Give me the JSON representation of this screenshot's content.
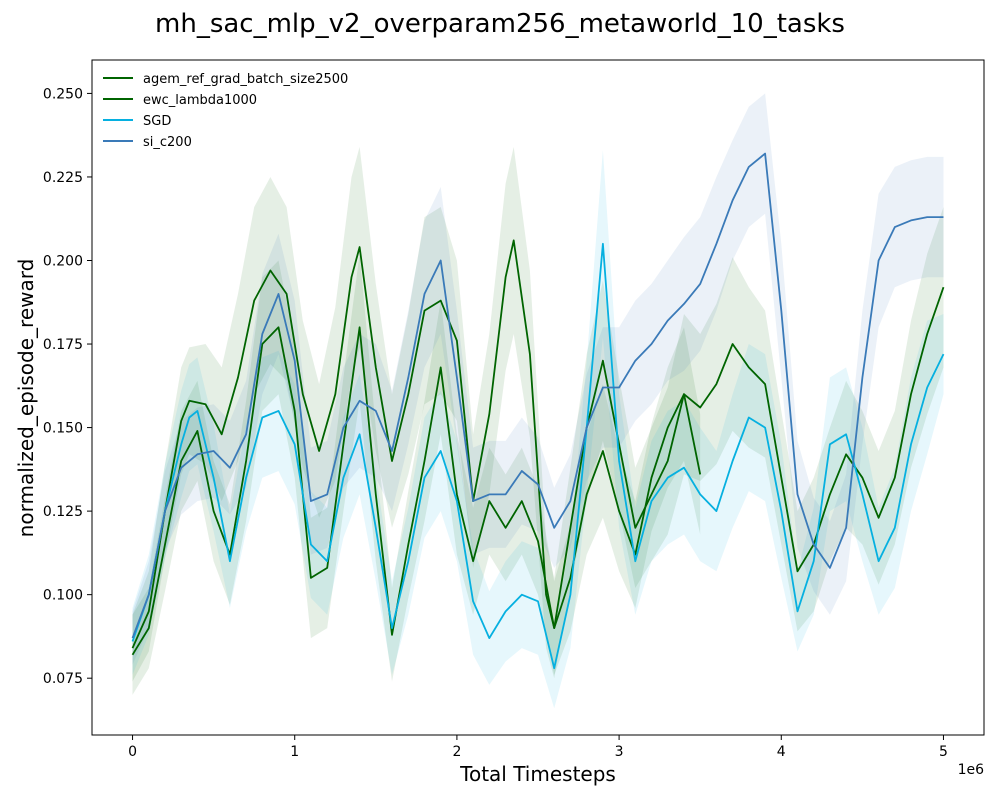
{
  "chart_data": {
    "type": "line",
    "title": "mh_sac_mlp_v2_overparam256_metaworld_10_tasks",
    "xlabel": "Total Timesteps",
    "ylabel": "normalized_episode_reward",
    "x_offset_label": "1e6",
    "xlim": [
      -0.25,
      5.25
    ],
    "ylim": [
      0.058,
      0.26
    ],
    "xticks": [
      0,
      1,
      2,
      3,
      4,
      5
    ],
    "xtick_labels": [
      "0",
      "1",
      "2",
      "3",
      "4",
      "5"
    ],
    "yticks": [
      0.075,
      0.1,
      0.125,
      0.15,
      0.175,
      0.2,
      0.225,
      0.25
    ],
    "ytick_labels": [
      "0.075",
      "0.100",
      "0.125",
      "0.150",
      "0.175",
      "0.200",
      "0.225",
      "0.250"
    ],
    "grid": false,
    "legend_position": "upper-left",
    "series": [
      {
        "name": "agem_ref_grad_batch_size2500",
        "color": "#006400",
        "x": [
          0,
          0.1,
          0.2,
          0.3,
          0.4,
          0.5,
          0.6,
          0.7,
          0.8,
          0.9,
          1.0,
          1.1,
          1.2,
          1.3,
          1.4,
          1.5,
          1.6,
          1.7,
          1.8,
          1.9,
          2.0,
          2.1,
          2.2,
          2.3,
          2.4,
          2.5,
          2.6,
          2.7,
          2.8,
          2.9,
          3.0,
          3.1,
          3.2,
          3.3,
          3.4,
          3.5
        ],
        "y": [
          0.082,
          0.09,
          0.115,
          0.14,
          0.149,
          0.125,
          0.112,
          0.14,
          0.175,
          0.18,
          0.155,
          0.105,
          0.108,
          0.145,
          0.18,
          0.13,
          0.088,
          0.115,
          0.14,
          0.168,
          0.13,
          0.11,
          0.128,
          0.12,
          0.128,
          0.116,
          0.09,
          0.105,
          0.13,
          0.143,
          0.125,
          0.112,
          0.135,
          0.15,
          0.16,
          0.136
        ],
        "band": [
          0.012,
          0.012,
          0.014,
          0.015,
          0.015,
          0.015,
          0.015,
          0.018,
          0.02,
          0.02,
          0.02,
          0.018,
          0.018,
          0.02,
          0.022,
          0.02,
          0.014,
          0.016,
          0.018,
          0.02,
          0.018,
          0.016,
          0.016,
          0.016,
          0.016,
          0.016,
          0.014,
          0.016,
          0.018,
          0.02,
          0.018,
          0.016,
          0.016,
          0.018,
          0.02,
          0.018
        ]
      },
      {
        "name": "ewc_lambda1000",
        "color": "#006400",
        "x": [
          0,
          0.1,
          0.2,
          0.3,
          0.35,
          0.45,
          0.55,
          0.65,
          0.75,
          0.85,
          0.95,
          1.05,
          1.15,
          1.25,
          1.35,
          1.4,
          1.5,
          1.6,
          1.7,
          1.8,
          1.9,
          2.0,
          2.1,
          2.2,
          2.3,
          2.35,
          2.45,
          2.55,
          2.6,
          2.7,
          2.8,
          2.9,
          3.0,
          3.1,
          3.2,
          3.3,
          3.4,
          3.5,
          3.6,
          3.7,
          3.8,
          3.9,
          4.0,
          4.1,
          4.2,
          4.3,
          4.4,
          4.5,
          4.6,
          4.7,
          4.8,
          4.9,
          5.0
        ],
        "y": [
          0.084,
          0.095,
          0.125,
          0.152,
          0.158,
          0.157,
          0.148,
          0.165,
          0.188,
          0.197,
          0.19,
          0.16,
          0.143,
          0.16,
          0.195,
          0.204,
          0.168,
          0.14,
          0.16,
          0.185,
          0.188,
          0.176,
          0.128,
          0.154,
          0.195,
          0.206,
          0.172,
          0.1,
          0.09,
          0.12,
          0.15,
          0.17,
          0.145,
          0.12,
          0.13,
          0.14,
          0.16,
          0.156,
          0.163,
          0.175,
          0.168,
          0.163,
          0.135,
          0.107,
          0.115,
          0.13,
          0.142,
          0.135,
          0.123,
          0.135,
          0.16,
          0.178,
          0.192
        ],
        "band": [
          0.01,
          0.012,
          0.014,
          0.016,
          0.016,
          0.018,
          0.02,
          0.025,
          0.028,
          0.028,
          0.026,
          0.022,
          0.02,
          0.026,
          0.03,
          0.03,
          0.025,
          0.02,
          0.024,
          0.028,
          0.028,
          0.024,
          0.02,
          0.024,
          0.028,
          0.028,
          0.025,
          0.016,
          0.015,
          0.018,
          0.022,
          0.024,
          0.02,
          0.018,
          0.02,
          0.022,
          0.024,
          0.022,
          0.024,
          0.026,
          0.024,
          0.022,
          0.02,
          0.018,
          0.02,
          0.02,
          0.022,
          0.02,
          0.02,
          0.02,
          0.022,
          0.024,
          0.024
        ]
      },
      {
        "name": "SGD",
        "color": "#06b0e0",
        "x": [
          0,
          0.1,
          0.2,
          0.3,
          0.35,
          0.4,
          0.5,
          0.6,
          0.7,
          0.8,
          0.9,
          1.0,
          1.1,
          1.2,
          1.3,
          1.4,
          1.5,
          1.6,
          1.7,
          1.8,
          1.9,
          2.0,
          2.1,
          2.2,
          2.3,
          2.4,
          2.5,
          2.6,
          2.7,
          2.8,
          2.9,
          3.0,
          3.1,
          3.2,
          3.3,
          3.4,
          3.5,
          3.6,
          3.7,
          3.8,
          3.9,
          4.0,
          4.1,
          4.2,
          4.3,
          4.4,
          4.5,
          4.6,
          4.7,
          4.8,
          4.9,
          5.0
        ],
        "y": [
          0.086,
          0.1,
          0.125,
          0.145,
          0.153,
          0.155,
          0.135,
          0.11,
          0.135,
          0.153,
          0.155,
          0.145,
          0.115,
          0.11,
          0.135,
          0.148,
          0.12,
          0.09,
          0.11,
          0.135,
          0.143,
          0.128,
          0.098,
          0.087,
          0.095,
          0.1,
          0.098,
          0.078,
          0.1,
          0.15,
          0.205,
          0.14,
          0.11,
          0.128,
          0.135,
          0.138,
          0.13,
          0.125,
          0.14,
          0.153,
          0.15,
          0.125,
          0.095,
          0.11,
          0.145,
          0.148,
          0.13,
          0.11,
          0.12,
          0.145,
          0.162,
          0.172
        ],
        "band": [
          0.01,
          0.012,
          0.014,
          0.016,
          0.016,
          0.016,
          0.016,
          0.014,
          0.016,
          0.018,
          0.018,
          0.018,
          0.016,
          0.016,
          0.018,
          0.018,
          0.016,
          0.014,
          0.016,
          0.018,
          0.018,
          0.018,
          0.016,
          0.014,
          0.015,
          0.016,
          0.016,
          0.012,
          0.016,
          0.02,
          0.028,
          0.02,
          0.016,
          0.018,
          0.02,
          0.02,
          0.02,
          0.018,
          0.02,
          0.022,
          0.022,
          0.02,
          0.012,
          0.016,
          0.02,
          0.02,
          0.02,
          0.016,
          0.018,
          0.02,
          0.02,
          0.012
        ]
      },
      {
        "name": "si_c200",
        "color": "#3a7ab8",
        "x": [
          0,
          0.1,
          0.2,
          0.3,
          0.4,
          0.5,
          0.6,
          0.7,
          0.8,
          0.9,
          1.0,
          1.1,
          1.2,
          1.3,
          1.4,
          1.5,
          1.6,
          1.7,
          1.8,
          1.9,
          2.0,
          2.1,
          2.2,
          2.3,
          2.4,
          2.5,
          2.6,
          2.7,
          2.8,
          2.9,
          3.0,
          3.1,
          3.2,
          3.3,
          3.4,
          3.5,
          3.6,
          3.7,
          3.8,
          3.9,
          4.0,
          4.1,
          4.2,
          4.3,
          4.4,
          4.5,
          4.6,
          4.7,
          4.8,
          4.9,
          5.0
        ],
        "y": [
          0.087,
          0.1,
          0.125,
          0.138,
          0.142,
          0.143,
          0.138,
          0.148,
          0.178,
          0.19,
          0.17,
          0.128,
          0.13,
          0.15,
          0.158,
          0.155,
          0.143,
          0.165,
          0.19,
          0.2,
          0.165,
          0.128,
          0.13,
          0.13,
          0.137,
          0.133,
          0.12,
          0.128,
          0.15,
          0.162,
          0.162,
          0.17,
          0.175,
          0.182,
          0.187,
          0.193,
          0.205,
          0.218,
          0.228,
          0.232,
          0.185,
          0.13,
          0.115,
          0.108,
          0.12,
          0.165,
          0.2,
          0.21,
          0.212,
          0.213,
          0.213
        ],
        "band": [
          0.008,
          0.01,
          0.012,
          0.014,
          0.014,
          0.014,
          0.014,
          0.016,
          0.018,
          0.018,
          0.018,
          0.016,
          0.016,
          0.018,
          0.02,
          0.02,
          0.018,
          0.02,
          0.022,
          0.022,
          0.02,
          0.016,
          0.016,
          0.016,
          0.016,
          0.014,
          0.012,
          0.014,
          0.016,
          0.018,
          0.018,
          0.018,
          0.018,
          0.018,
          0.02,
          0.02,
          0.02,
          0.018,
          0.018,
          0.018,
          0.02,
          0.016,
          0.014,
          0.014,
          0.016,
          0.02,
          0.02,
          0.018,
          0.018,
          0.018,
          0.018
        ]
      }
    ]
  }
}
